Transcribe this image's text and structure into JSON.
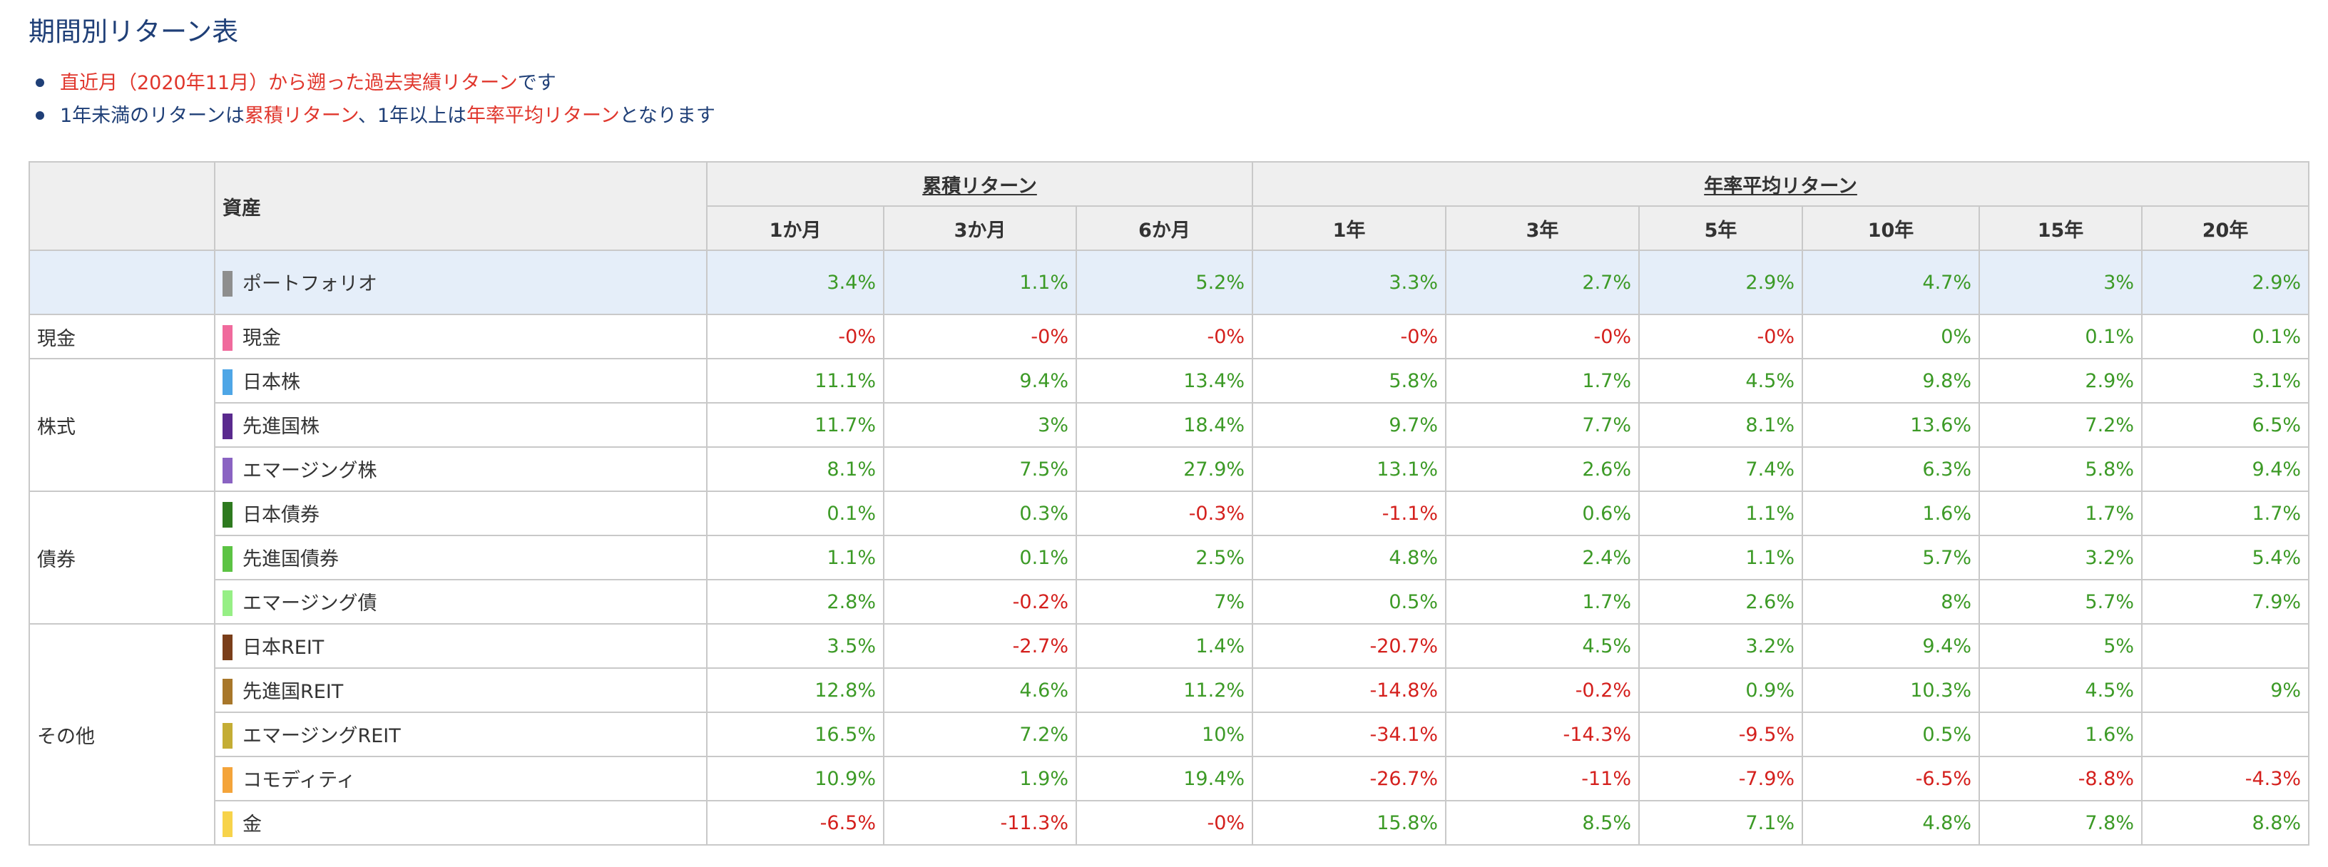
{
  "title": "期間別リターン表",
  "notes": [
    [
      {
        "text": "直近月（2020年11月）から遡った過去実績リターン",
        "red": true
      },
      {
        "text": "です",
        "red": false
      }
    ],
    [
      {
        "text": "1年未満のリターンは",
        "red": false
      },
      {
        "text": "累積リターン",
        "red": true
      },
      {
        "text": "、1年以上は",
        "red": false
      },
      {
        "text": "年率平均リターン",
        "red": true
      },
      {
        "text": "となります",
        "red": false
      }
    ]
  ],
  "table": {
    "asset_header": "資産",
    "group_cumulative": "累積リターン",
    "group_annual": "年率平均リターン",
    "periods": [
      "1か月",
      "3か月",
      "6か月",
      "1年",
      "3年",
      "5年",
      "10年",
      "15年",
      "20年"
    ],
    "portfolio": {
      "name": "ポートフォリオ",
      "color": "#8e8e8e",
      "values": [
        "3.4%",
        "1.1%",
        "5.2%",
        "3.3%",
        "2.7%",
        "2.9%",
        "4.7%",
        "3%",
        "2.9%"
      ]
    },
    "groups": [
      {
        "category": "現金",
        "rows": [
          {
            "name": "現金",
            "color": "#f06a9c",
            "values": [
              "-0%",
              "-0%",
              "-0%",
              "-0%",
              "-0%",
              "-0%",
              "0%",
              "0.1%",
              "0.1%"
            ]
          }
        ]
      },
      {
        "category": "株式",
        "rows": [
          {
            "name": "日本株",
            "color": "#4ea6e6",
            "values": [
              "11.1%",
              "9.4%",
              "13.4%",
              "5.8%",
              "1.7%",
              "4.5%",
              "9.8%",
              "2.9%",
              "3.1%"
            ]
          },
          {
            "name": "先進国株",
            "color": "#5a2a8e",
            "values": [
              "11.7%",
              "3%",
              "18.4%",
              "9.7%",
              "7.7%",
              "8.1%",
              "13.6%",
              "7.2%",
              "6.5%"
            ]
          },
          {
            "name": "エマージング株",
            "color": "#8a63c2",
            "values": [
              "8.1%",
              "7.5%",
              "27.9%",
              "13.1%",
              "2.6%",
              "7.4%",
              "6.3%",
              "5.8%",
              "9.4%"
            ]
          }
        ]
      },
      {
        "category": "債券",
        "rows": [
          {
            "name": "日本債券",
            "color": "#2e7a1f",
            "values": [
              "0.1%",
              "0.3%",
              "-0.3%",
              "-1.1%",
              "0.6%",
              "1.1%",
              "1.6%",
              "1.7%",
              "1.7%"
            ]
          },
          {
            "name": "先進国債券",
            "color": "#5cc344",
            "values": [
              "1.1%",
              "0.1%",
              "2.5%",
              "4.8%",
              "2.4%",
              "1.1%",
              "5.7%",
              "3.2%",
              "5.4%"
            ]
          },
          {
            "name": "エマージング債",
            "color": "#96ef85",
            "values": [
              "2.8%",
              "-0.2%",
              "7%",
              "0.5%",
              "1.7%",
              "2.6%",
              "8%",
              "5.7%",
              "7.9%"
            ]
          }
        ]
      },
      {
        "category": "その他",
        "rows": [
          {
            "name": "日本REIT",
            "color": "#7a3e1a",
            "values": [
              "3.5%",
              "-2.7%",
              "1.4%",
              "-20.7%",
              "4.5%",
              "3.2%",
              "9.4%",
              "5%",
              ""
            ]
          },
          {
            "name": "先進国REIT",
            "color": "#a8772a",
            "values": [
              "12.8%",
              "4.6%",
              "11.2%",
              "-14.8%",
              "-0.2%",
              "0.9%",
              "10.3%",
              "4.5%",
              "9%"
            ]
          },
          {
            "name": "エマージングREIT",
            "color": "#c4ad35",
            "values": [
              "16.5%",
              "7.2%",
              "10%",
              "-34.1%",
              "-14.3%",
              "-9.5%",
              "0.5%",
              "1.6%",
              ""
            ]
          },
          {
            "name": "コモディティ",
            "color": "#f4a43a",
            "values": [
              "10.9%",
              "1.9%",
              "19.4%",
              "-26.7%",
              "-11%",
              "-7.9%",
              "-6.5%",
              "-8.8%",
              "-4.3%"
            ]
          },
          {
            "name": "金",
            "color": "#f7d34a",
            "values": [
              "-6.5%",
              "-11.3%",
              "-0%",
              "15.8%",
              "8.5%",
              "7.1%",
              "4.8%",
              "7.8%",
              "8.8%"
            ]
          }
        ]
      }
    ]
  },
  "colors": {
    "positive": "#3c9a26",
    "negative": "#d4201d",
    "accent": "#e0362c",
    "title": "#1f3f77",
    "portfolio_bg": "#e5eef9",
    "header_bg": "#efefef"
  }
}
